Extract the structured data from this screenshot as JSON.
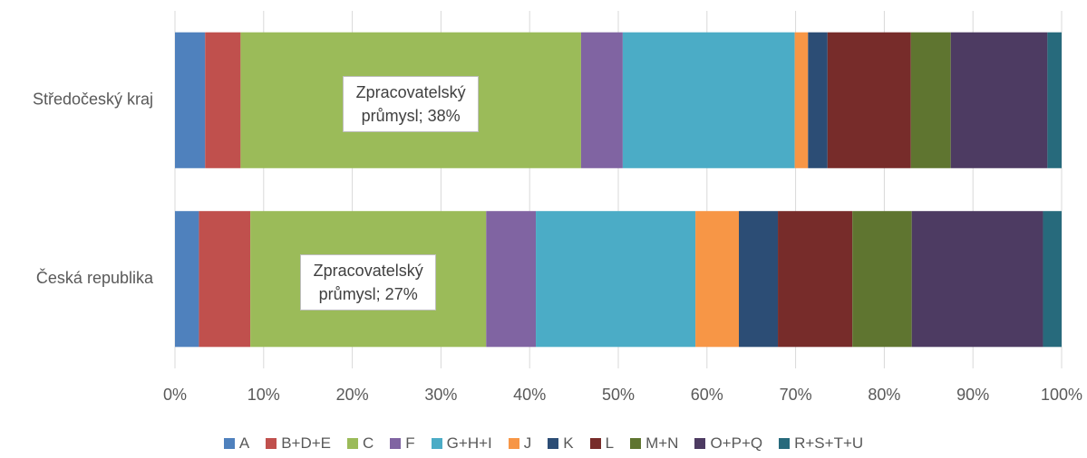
{
  "chart_data": {
    "type": "stacked-bar-horizontal",
    "categories": [
      "Středočeský kraj",
      "Česká republika"
    ],
    "series": [
      {
        "name": "A",
        "color": "#4f81bd",
        "values": [
          3.4,
          2.7
        ]
      },
      {
        "name": "B+D+E",
        "color": "#c0504d",
        "values": [
          4.0,
          5.8
        ]
      },
      {
        "name": "C",
        "color": "#9bbb59",
        "values": [
          38.4,
          26.6
        ],
        "value_labels": [
          "Zpracovatelský průmysl; 38%",
          "Zpracovatelský průmysl; 27%"
        ]
      },
      {
        "name": "F",
        "color": "#8064a2",
        "values": [
          4.7,
          5.6
        ]
      },
      {
        "name": "G+H+I",
        "color": "#4bacc6",
        "values": [
          19.4,
          18.0
        ]
      },
      {
        "name": "J",
        "color": "#f79646",
        "values": [
          1.5,
          4.9
        ]
      },
      {
        "name": "K",
        "color": "#2c4d75",
        "values": [
          2.2,
          4.4
        ]
      },
      {
        "name": "L",
        "color": "#772c2a",
        "values": [
          9.4,
          8.4
        ]
      },
      {
        "name": "M+N",
        "color": "#5f7530",
        "values": [
          4.5,
          6.7
        ]
      },
      {
        "name": "O+P+Q",
        "color": "#4d3b62",
        "values": [
          10.9,
          14.8
        ]
      },
      {
        "name": "R+S+T+U",
        "color": "#276a7c",
        "values": [
          1.6,
          2.1
        ]
      }
    ],
    "xlim": [
      0,
      100
    ],
    "xticks": [
      {
        "value": 0,
        "label": "0%"
      },
      {
        "value": 10,
        "label": "10%"
      },
      {
        "value": 20,
        "label": "20%"
      },
      {
        "value": 30,
        "label": "30%"
      },
      {
        "value": 40,
        "label": "40%"
      },
      {
        "value": 50,
        "label": "50%"
      },
      {
        "value": 60,
        "label": "60%"
      },
      {
        "value": 70,
        "label": "70%"
      },
      {
        "value": 80,
        "label": "80%"
      },
      {
        "value": 90,
        "label": "90%"
      },
      {
        "value": 100,
        "label": "100%"
      }
    ],
    "grid": true,
    "legend": "bottom"
  }
}
